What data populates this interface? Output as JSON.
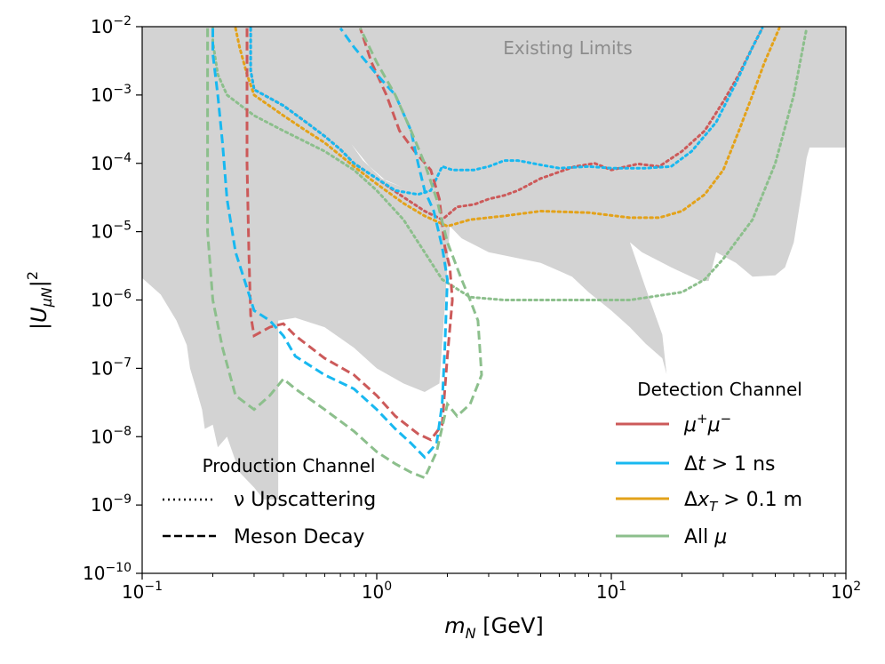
{
  "chart_data": {
    "type": "line",
    "xscale": "log",
    "yscale": "log",
    "xlim": [
      0.1,
      100
    ],
    "ylim": [
      1e-10,
      0.01
    ],
    "xlabel": "m_N [GeV]",
    "ylabel": "|U_μN|^2",
    "x_ticks": [
      {
        "value": 0.1,
        "base": "10",
        "exp": "−1"
      },
      {
        "value": 1,
        "base": "10",
        "exp": "0"
      },
      {
        "value": 10,
        "base": "10",
        "exp": "1"
      },
      {
        "value": 100,
        "base": "10",
        "exp": "2"
      }
    ],
    "y_ticks": [
      {
        "value": 1e-10,
        "base": "10",
        "exp": "−10"
      },
      {
        "value": 1e-09,
        "base": "10",
        "exp": "−9"
      },
      {
        "value": 1e-08,
        "base": "10",
        "exp": "−8"
      },
      {
        "value": 1e-07,
        "base": "10",
        "exp": "−7"
      },
      {
        "value": 1e-06,
        "base": "10",
        "exp": "−6"
      },
      {
        "value": 1e-05,
        "base": "10",
        "exp": "−5"
      },
      {
        "value": 0.0001,
        "base": "10",
        "exp": "−4"
      },
      {
        "value": 0.001,
        "base": "10",
        "exp": "−3"
      },
      {
        "value": 0.01,
        "base": "10",
        "exp": "−2"
      }
    ],
    "annotation": "Existing Limits",
    "colors": {
      "mumu": "#cc5a5a",
      "dt": "#18b8f0",
      "dxt": "#e3a21a",
      "allmu": "#8cbf8c",
      "excluded": "#d3d3d3"
    },
    "legend_detection": {
      "title": "Detection Channel",
      "position": "lower-right",
      "entries": [
        {
          "label": "μ⁺μ⁻",
          "series": "mumu"
        },
        {
          "label": "Δt > 1 ns",
          "series": "dt"
        },
        {
          "label": "Δx_T > 0.1 m",
          "series": "dxt"
        },
        {
          "label": "All μ",
          "series": "allmu"
        }
      ]
    },
    "legend_production": {
      "title": "Production Channel",
      "position": "lower-left",
      "entries": [
        {
          "label": "ν Upscattering",
          "style": "dotted"
        },
        {
          "label": "Meson Decay",
          "style": "dashed"
        }
      ]
    },
    "excluded_region": [
      [
        0.1,
        0.01
      ],
      [
        0.1,
        2.1e-06
      ],
      [
        0.12,
        1.2e-06
      ],
      [
        0.14,
        5e-07
      ],
      [
        0.155,
        2.2e-07
      ],
      [
        0.16,
        1e-07
      ],
      [
        0.17,
        5e-08
      ],
      [
        0.18,
        2.5e-08
      ],
      [
        0.185,
        1.3e-08
      ],
      [
        0.2,
        1.5e-08
      ],
      [
        0.21,
        7e-09
      ],
      [
        0.23,
        1e-08
      ],
      [
        0.26,
        3e-09
      ],
      [
        0.3,
        1.8e-09
      ],
      [
        0.33,
        1.2e-09
      ],
      [
        0.38,
        1.2e-09
      ],
      [
        0.38,
        5e-07
      ],
      [
        0.45,
        5.5e-07
      ],
      [
        0.6,
        4e-07
      ],
      [
        0.8,
        2e-07
      ],
      [
        1.0,
        1e-07
      ],
      [
        1.3,
        6e-08
      ],
      [
        1.6,
        4.5e-08
      ],
      [
        1.85,
        6e-08
      ],
      [
        1.95,
        8e-07
      ],
      [
        2.05,
        1.2e-05
      ],
      [
        2.3,
        8e-06
      ],
      [
        3.0,
        5e-06
      ],
      [
        5.0,
        3.5e-06
      ],
      [
        6.8,
        2.2e-06
      ],
      [
        8.0,
        1.3e-06
      ],
      [
        10.0,
        7e-07
      ],
      [
        12.0,
        4e-07
      ],
      [
        14.0,
        2.3e-07
      ],
      [
        16.5,
        1.4e-07
      ],
      [
        17.2,
        8.2e-08
      ],
      [
        16.5,
        3.1e-07
      ],
      [
        14.0,
        1.5e-06
      ],
      [
        12.0,
        7e-06
      ],
      [
        13.5,
        5e-06
      ],
      [
        18.0,
        3e-06
      ],
      [
        24.0,
        1.9e-06
      ],
      [
        26.0,
        1.9e-06
      ],
      [
        28.0,
        5e-06
      ],
      [
        34.0,
        3.5e-06
      ],
      [
        40.0,
        2.2e-06
      ],
      [
        50.0,
        2.3e-06
      ],
      [
        55.0,
        3e-06
      ],
      [
        60.0,
        7e-06
      ],
      [
        65.0,
        4e-05
      ],
      [
        68.0,
        0.00012
      ],
      [
        70.0,
        0.00017
      ],
      [
        100.0,
        0.00017
      ],
      [
        100.0,
        0.01
      ]
    ],
    "excluded_hole": [
      [
        0.78,
        0.00019
      ],
      [
        0.93,
        9e-05
      ],
      [
        1.1,
        5.5e-05
      ],
      [
        1.28,
        4.5e-05
      ],
      [
        1.05,
        6e-05
      ],
      [
        0.87,
        0.000112
      ]
    ],
    "series": [
      {
        "id": "mumu_up",
        "detection": "mumu",
        "production": "upscattering",
        "points": [
          [
            0.29,
            0.0095
          ],
          [
            0.29,
            0.0023
          ],
          [
            0.3,
            0.0012
          ],
          [
            0.35,
            0.0009
          ],
          [
            0.4,
            0.0007
          ],
          [
            0.5,
            0.0004
          ],
          [
            0.6,
            0.00025
          ],
          [
            0.7,
            0.00016
          ],
          [
            0.8,
            0.0001
          ],
          [
            1.0,
            6e-05
          ],
          [
            1.3,
            3.2e-05
          ],
          [
            1.6,
            2e-05
          ],
          [
            1.9,
            1.5e-05
          ],
          [
            2.2,
            2.3e-05
          ],
          [
            2.6,
            2.5e-05
          ],
          [
            3.0,
            3e-05
          ],
          [
            3.5,
            3.4e-05
          ],
          [
            4.0,
            4e-05
          ],
          [
            5.0,
            6e-05
          ],
          [
            6.0,
            7.5e-05
          ],
          [
            7.0,
            9e-05
          ],
          [
            8.5,
            0.0001
          ],
          [
            10,
            8e-05
          ],
          [
            13,
            9.8e-05
          ],
          [
            16,
            9e-05
          ],
          [
            20,
            0.00015
          ],
          [
            25,
            0.0003
          ],
          [
            30,
            0.0008
          ],
          [
            35,
            0.002
          ],
          [
            40,
            0.005
          ],
          [
            44,
            0.0095
          ]
        ]
      },
      {
        "id": "dt_up",
        "detection": "dt",
        "production": "upscattering",
        "points": [
          [
            0.29,
            0.0095
          ],
          [
            0.29,
            0.0023
          ],
          [
            0.3,
            0.0012
          ],
          [
            0.35,
            0.0009
          ],
          [
            0.4,
            0.0007
          ],
          [
            0.5,
            0.0004
          ],
          [
            0.6,
            0.00025
          ],
          [
            0.7,
            0.00016
          ],
          [
            0.8,
            0.0001
          ],
          [
            1.0,
            6e-05
          ],
          [
            1.2,
            4e-05
          ],
          [
            1.5,
            3.5e-05
          ],
          [
            1.7,
            4e-05
          ],
          [
            1.9,
            9e-05
          ],
          [
            2.1,
            8e-05
          ],
          [
            2.6,
            8e-05
          ],
          [
            3.0,
            9e-05
          ],
          [
            3.5,
            0.00011
          ],
          [
            4.0,
            0.00011
          ],
          [
            5.0,
            9.5e-05
          ],
          [
            6.0,
            8.5e-05
          ],
          [
            8.0,
            9e-05
          ],
          [
            10,
            8.5e-05
          ],
          [
            14,
            8.5e-05
          ],
          [
            18,
            9e-05
          ],
          [
            22,
            0.00015
          ],
          [
            28,
            0.0004
          ],
          [
            34,
            0.0015
          ],
          [
            40,
            0.005
          ],
          [
            44,
            0.0095
          ]
        ]
      },
      {
        "id": "dxt_up",
        "detection": "dxt",
        "production": "upscattering",
        "points": [
          [
            0.25,
            0.0095
          ],
          [
            0.26,
            0.005
          ],
          [
            0.28,
            0.002
          ],
          [
            0.3,
            0.001
          ],
          [
            0.4,
            0.0005
          ],
          [
            0.5,
            0.0003
          ],
          [
            0.6,
            0.0002
          ],
          [
            0.8,
            9e-05
          ],
          [
            1.0,
            5e-05
          ],
          [
            1.3,
            2.6e-05
          ],
          [
            1.6,
            1.7e-05
          ],
          [
            2.0,
            1.2e-05
          ],
          [
            2.5,
            1.5e-05
          ],
          [
            3.5,
            1.7e-05
          ],
          [
            5.0,
            2e-05
          ],
          [
            8.0,
            1.9e-05
          ],
          [
            12,
            1.6e-05
          ],
          [
            16,
            1.6e-05
          ],
          [
            20,
            2e-05
          ],
          [
            25,
            3.5e-05
          ],
          [
            30,
            8e-05
          ],
          [
            35,
            0.0003
          ],
          [
            40,
            0.001
          ],
          [
            45,
            0.003
          ],
          [
            52,
            0.0095
          ]
        ]
      },
      {
        "id": "allmu_up",
        "detection": "allmu",
        "production": "upscattering",
        "points": [
          [
            0.2,
            0.0095
          ],
          [
            0.2,
            0.006
          ],
          [
            0.21,
            0.002
          ],
          [
            0.23,
            0.001
          ],
          [
            0.3,
            0.0005
          ],
          [
            0.4,
            0.0003
          ],
          [
            0.6,
            0.00015
          ],
          [
            0.8,
            8e-05
          ],
          [
            1.0,
            4e-05
          ],
          [
            1.3,
            1.5e-05
          ],
          [
            1.6,
            5e-06
          ],
          [
            1.9,
            2e-06
          ],
          [
            2.5,
            1.1e-06
          ],
          [
            3.5,
            1e-06
          ],
          [
            5.0,
            1e-06
          ],
          [
            8.0,
            1e-06
          ],
          [
            12,
            1e-06
          ],
          [
            20,
            1.3e-06
          ],
          [
            25,
            2e-06
          ],
          [
            30,
            4e-06
          ],
          [
            40,
            1.5e-05
          ],
          [
            50,
            0.0001
          ],
          [
            60,
            0.001
          ],
          [
            68,
            0.0095
          ]
        ]
      },
      {
        "id": "mumu_md",
        "detection": "mumu",
        "production": "meson",
        "points": [
          [
            0.28,
            0.0095
          ],
          [
            0.28,
            0.0001
          ],
          [
            0.285,
            5e-06
          ],
          [
            0.29,
            6e-07
          ],
          [
            0.3,
            3e-07
          ],
          [
            0.35,
            4e-07
          ],
          [
            0.4,
            4.5e-07
          ],
          [
            0.45,
            3e-07
          ],
          [
            0.6,
            1.4e-07
          ],
          [
            0.8,
            8e-08
          ],
          [
            1.0,
            4e-08
          ],
          [
            1.2,
            2e-08
          ],
          [
            1.5,
            1.1e-08
          ],
          [
            1.7,
            9e-09
          ],
          [
            1.9,
            1.5e-08
          ],
          [
            2.0,
            1.5e-07
          ],
          [
            2.1,
            1e-06
          ],
          [
            2.05,
            3e-06
          ],
          [
            1.95,
            6e-06
          ],
          [
            1.85,
            3e-05
          ],
          [
            1.7,
            8e-05
          ],
          [
            1.45,
            0.00015
          ],
          [
            1.25,
            0.0003
          ],
          [
            1.1,
            0.001
          ],
          [
            0.95,
            0.003
          ],
          [
            0.85,
            0.0095
          ]
        ]
      },
      {
        "id": "dt_md",
        "detection": "dt",
        "production": "meson",
        "points": [
          [
            0.2,
            0.0095
          ],
          [
            0.2,
            0.004
          ],
          [
            0.21,
            0.001
          ],
          [
            0.22,
            0.0002
          ],
          [
            0.23,
            3e-05
          ],
          [
            0.25,
            5e-06
          ],
          [
            0.28,
            1.5e-06
          ],
          [
            0.3,
            7e-07
          ],
          [
            0.35,
            5e-07
          ],
          [
            0.4,
            3e-07
          ],
          [
            0.45,
            1.5e-07
          ],
          [
            0.6,
            8e-08
          ],
          [
            0.8,
            5e-08
          ],
          [
            1.0,
            2.5e-08
          ],
          [
            1.2,
            1.3e-08
          ],
          [
            1.4,
            8e-09
          ],
          [
            1.6,
            5e-09
          ],
          [
            1.8,
            8e-09
          ],
          [
            1.9,
            3e-08
          ],
          [
            1.95,
            2e-07
          ],
          [
            2.0,
            2e-06
          ],
          [
            1.9,
            6e-06
          ],
          [
            1.75,
            2e-05
          ],
          [
            1.6,
            4e-05
          ],
          [
            1.5,
            0.0001
          ],
          [
            1.4,
            0.0003
          ],
          [
            1.2,
            0.001
          ],
          [
            1.0,
            0.002
          ],
          [
            0.8,
            0.005
          ],
          [
            0.7,
            0.0095
          ]
        ]
      },
      {
        "id": "allmu_md",
        "detection": "allmu",
        "production": "meson",
        "points": [
          [
            0.19,
            0.0095
          ],
          [
            0.19,
            1e-05
          ],
          [
            0.2,
            1e-06
          ],
          [
            0.22,
            2e-07
          ],
          [
            0.25,
            4e-08
          ],
          [
            0.3,
            2.5e-08
          ],
          [
            0.35,
            4e-08
          ],
          [
            0.4,
            7e-08
          ],
          [
            0.45,
            5e-08
          ],
          [
            0.6,
            2.5e-08
          ],
          [
            0.8,
            1.2e-08
          ],
          [
            1.0,
            6e-09
          ],
          [
            1.2,
            4e-09
          ],
          [
            1.4,
            3e-09
          ],
          [
            1.6,
            2.5e-09
          ],
          [
            1.8,
            6e-09
          ],
          [
            2.0,
            3e-08
          ],
          [
            2.2,
            2e-08
          ],
          [
            2.5,
            3e-08
          ],
          [
            2.8,
            8e-08
          ],
          [
            2.7,
            5e-07
          ],
          [
            2.5,
            1e-06
          ],
          [
            2.3,
            2e-06
          ],
          [
            2.0,
            7e-06
          ],
          [
            1.8,
            3e-05
          ],
          [
            1.6,
            0.0001
          ],
          [
            1.4,
            0.0003
          ],
          [
            1.2,
            0.001
          ],
          [
            1.0,
            0.003
          ],
          [
            0.85,
            0.0095
          ]
        ]
      }
    ]
  }
}
